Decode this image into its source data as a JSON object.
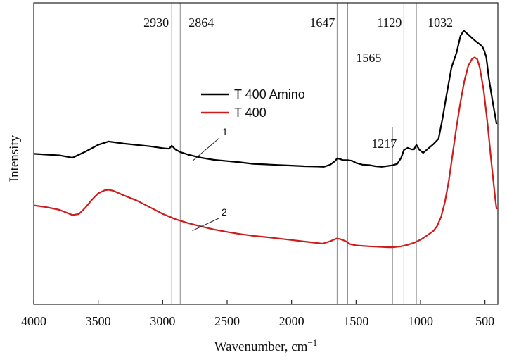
{
  "chart_data": {
    "type": "line",
    "title": "",
    "xlabel": "Wavenumber, cm",
    "xlabel_superscript": "−1",
    "ylabel": "Intensity",
    "xlim": [
      4000,
      400
    ],
    "ylim": [
      0,
      100
    ],
    "x_reversed": true,
    "xticks": [
      4000,
      3500,
      3000,
      2500,
      2000,
      1500,
      1000,
      500
    ],
    "xtick_labels": [
      "4000",
      "3500",
      "3000",
      "2500",
      "2000",
      "1500",
      "1000",
      "500"
    ],
    "grid": false,
    "legend": {
      "position": "top-center",
      "entries": [
        "T 400 Amino",
        "T 400"
      ]
    },
    "series": [
      {
        "name": "T 400 Amino",
        "color": "#000000",
        "curve_label": "1",
        "points": [
          [
            4000,
            49.9
          ],
          [
            3800,
            49.4
          ],
          [
            3700,
            48.6
          ],
          [
            3600,
            50.6
          ],
          [
            3500,
            52.9
          ],
          [
            3420,
            54.0
          ],
          [
            3300,
            53.3
          ],
          [
            3100,
            52.4
          ],
          [
            3000,
            51.8
          ],
          [
            2950,
            51.6
          ],
          [
            2930,
            52.6
          ],
          [
            2900,
            51.3
          ],
          [
            2864,
            50.5
          ],
          [
            2800,
            49.6
          ],
          [
            2700,
            48.6
          ],
          [
            2600,
            47.9
          ],
          [
            2500,
            47.5
          ],
          [
            2400,
            47.1
          ],
          [
            2300,
            46.6
          ],
          [
            2200,
            46.4
          ],
          [
            2100,
            46.2
          ],
          [
            2000,
            46.0
          ],
          [
            1900,
            45.8
          ],
          [
            1800,
            45.7
          ],
          [
            1750,
            45.6
          ],
          [
            1700,
            46.3
          ],
          [
            1660,
            47.6
          ],
          [
            1647,
            48.4
          ],
          [
            1620,
            48.1
          ],
          [
            1600,
            47.8
          ],
          [
            1565,
            47.8
          ],
          [
            1530,
            47.6
          ],
          [
            1500,
            46.9
          ],
          [
            1450,
            46.3
          ],
          [
            1400,
            46.2
          ],
          [
            1350,
            45.8
          ],
          [
            1300,
            45.6
          ],
          [
            1250,
            45.9
          ],
          [
            1217,
            46.1
          ],
          [
            1180,
            46.6
          ],
          [
            1150,
            48.6
          ],
          [
            1129,
            51.2
          ],
          [
            1100,
            51.9
          ],
          [
            1070,
            51.4
          ],
          [
            1050,
            51.4
          ],
          [
            1032,
            52.9
          ],
          [
            1010,
            51.3
          ],
          [
            980,
            50.2
          ],
          [
            950,
            51.3
          ],
          [
            900,
            53.1
          ],
          [
            860,
            54.9
          ],
          [
            830,
            61.5
          ],
          [
            800,
            69.0
          ],
          [
            760,
            78.5
          ],
          [
            720,
            83.5
          ],
          [
            690,
            89.0
          ],
          [
            665,
            90.8
          ],
          [
            630,
            89.5
          ],
          [
            600,
            88.3
          ],
          [
            570,
            87.2
          ],
          [
            545,
            86.4
          ],
          [
            520,
            85.5
          ],
          [
            505,
            84.0
          ],
          [
            490,
            82.0
          ],
          [
            470,
            75.0
          ],
          [
            440,
            67.0
          ],
          [
            410,
            59.8
          ]
        ]
      },
      {
        "name": "T 400",
        "color": "#cc1c1c",
        "curve_label": "2",
        "points": [
          [
            4000,
            32.8
          ],
          [
            3900,
            32.2
          ],
          [
            3800,
            31.3
          ],
          [
            3700,
            29.6
          ],
          [
            3650,
            29.9
          ],
          [
            3600,
            32.0
          ],
          [
            3550,
            34.6
          ],
          [
            3500,
            36.8
          ],
          [
            3450,
            37.8
          ],
          [
            3420,
            38.0
          ],
          [
            3380,
            37.6
          ],
          [
            3300,
            36.1
          ],
          [
            3200,
            34.4
          ],
          [
            3100,
            32.2
          ],
          [
            3000,
            30.0
          ],
          [
            2900,
            28.2
          ],
          [
            2800,
            26.9
          ],
          [
            2700,
            25.8
          ],
          [
            2600,
            24.8
          ],
          [
            2500,
            24.0
          ],
          [
            2400,
            23.3
          ],
          [
            2300,
            22.7
          ],
          [
            2200,
            22.3
          ],
          [
            2100,
            21.8
          ],
          [
            2000,
            21.3
          ],
          [
            1900,
            20.8
          ],
          [
            1800,
            20.3
          ],
          [
            1760,
            20.1
          ],
          [
            1700,
            20.9
          ],
          [
            1650,
            21.8
          ],
          [
            1620,
            21.6
          ],
          [
            1580,
            20.9
          ],
          [
            1550,
            20.0
          ],
          [
            1500,
            19.5
          ],
          [
            1400,
            19.2
          ],
          [
            1300,
            19.0
          ],
          [
            1250,
            18.9
          ],
          [
            1217,
            18.9
          ],
          [
            1150,
            19.2
          ],
          [
            1100,
            19.7
          ],
          [
            1050,
            20.4
          ],
          [
            1000,
            21.4
          ],
          [
            950,
            22.8
          ],
          [
            900,
            24.3
          ],
          [
            870,
            26.0
          ],
          [
            840,
            29.0
          ],
          [
            810,
            34.0
          ],
          [
            780,
            41.0
          ],
          [
            750,
            50.0
          ],
          [
            720,
            59.0
          ],
          [
            690,
            67.0
          ],
          [
            660,
            74.0
          ],
          [
            630,
            79.0
          ],
          [
            600,
            81.4
          ],
          [
            580,
            81.9
          ],
          [
            560,
            81.3
          ],
          [
            540,
            78.5
          ],
          [
            510,
            71.0
          ],
          [
            480,
            60.0
          ],
          [
            450,
            47.0
          ],
          [
            420,
            35.0
          ],
          [
            410,
            31.5
          ]
        ]
      }
    ],
    "vertical_markers": [
      {
        "x": 2930,
        "label": "2930",
        "label_row": 1
      },
      {
        "x": 2864,
        "label": "2864",
        "label_row": 1
      },
      {
        "x": 1647,
        "label": "1647",
        "label_row": 1
      },
      {
        "x": 1565,
        "label": "1565",
        "label_row": 2
      },
      {
        "x": 1217,
        "label": "1217",
        "label_row": 3
      },
      {
        "x": 1129,
        "label": "1129",
        "label_row": 1
      },
      {
        "x": 1032,
        "label": "1032",
        "label_row": 1
      }
    ]
  }
}
